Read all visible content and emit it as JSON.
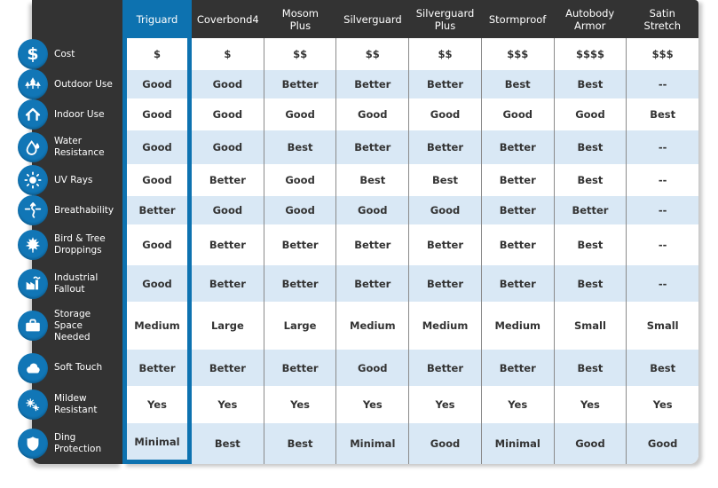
{
  "colors": {
    "accent_blue": "#0d72b0",
    "icon_circle_blue": "#1176b6",
    "header_dark": "#333333",
    "row_stripe_blue": "#d9e8f5",
    "separator_gray": "#8a8a8a",
    "cell_text": "#333333"
  },
  "columns": [
    {
      "label": "Triguard",
      "highlighted": true
    },
    {
      "label": "Coverbond4",
      "highlighted": false
    },
    {
      "label": "Mosom\nPlus",
      "highlighted": false
    },
    {
      "label": "Silverguard",
      "highlighted": false
    },
    {
      "label": "Silverguard\nPlus",
      "highlighted": false
    },
    {
      "label": "Stormproof",
      "highlighted": false
    },
    {
      "label": "Autobody\nArmor",
      "highlighted": false
    },
    {
      "label": "Satin\nStretch",
      "highlighted": false
    }
  ],
  "rows": [
    {
      "label": "Cost",
      "icon": "dollar-icon",
      "values": [
        "$",
        "$",
        "$$",
        "$$",
        "$$",
        "$$$",
        "$$$$",
        "$$$"
      ]
    },
    {
      "label": "Outdoor Use",
      "icon": "trees-icon",
      "values": [
        "Good",
        "Good",
        "Better",
        "Better",
        "Better",
        "Best",
        "Best",
        "--"
      ]
    },
    {
      "label": "Indoor Use",
      "icon": "house-icon",
      "values": [
        "Good",
        "Good",
        "Good",
        "Good",
        "Good",
        "Good",
        "Good",
        "Best"
      ]
    },
    {
      "label": "Water\nResistance",
      "icon": "water-drop-icon",
      "values": [
        "Good",
        "Good",
        "Best",
        "Better",
        "Better",
        "Better",
        "Best",
        "--"
      ]
    },
    {
      "label": "UV Rays",
      "icon": "sun-icon",
      "values": [
        "Good",
        "Better",
        "Good",
        "Best",
        "Best",
        "Better",
        "Best",
        "--"
      ]
    },
    {
      "label": "Breathability",
      "icon": "breathability-icon",
      "values": [
        "Better",
        "Good",
        "Good",
        "Good",
        "Good",
        "Better",
        "Better",
        "--"
      ]
    },
    {
      "label": "Bird & Tree\nDroppings",
      "icon": "maple-leaf-icon",
      "values": [
        "Good",
        "Better",
        "Better",
        "Better",
        "Better",
        "Better",
        "Best",
        "--"
      ]
    },
    {
      "label": "Industrial\nFallout",
      "icon": "factory-icon",
      "values": [
        "Good",
        "Better",
        "Better",
        "Better",
        "Better",
        "Better",
        "Best",
        "--"
      ]
    },
    {
      "label": "Storage\nSpace\nNeeded",
      "icon": "suitcase-icon",
      "values": [
        "Medium",
        "Large",
        "Large",
        "Medium",
        "Medium",
        "Medium",
        "Small",
        "Small"
      ]
    },
    {
      "label": "Soft Touch",
      "icon": "cloud-icon",
      "values": [
        "Better",
        "Better",
        "Better",
        "Good",
        "Better",
        "Better",
        "Best",
        "Best"
      ]
    },
    {
      "label": "Mildew\nResistant",
      "icon": "mildew-icon",
      "values": [
        "Yes",
        "Yes",
        "Yes",
        "Yes",
        "Yes",
        "Yes",
        "Yes",
        "Yes"
      ]
    },
    {
      "label": "Ding\nProtection",
      "icon": "shield-icon",
      "values": [
        "Minimal",
        "Best",
        "Best",
        "Minimal",
        "Good",
        "Minimal",
        "Good",
        "Good"
      ]
    }
  ]
}
